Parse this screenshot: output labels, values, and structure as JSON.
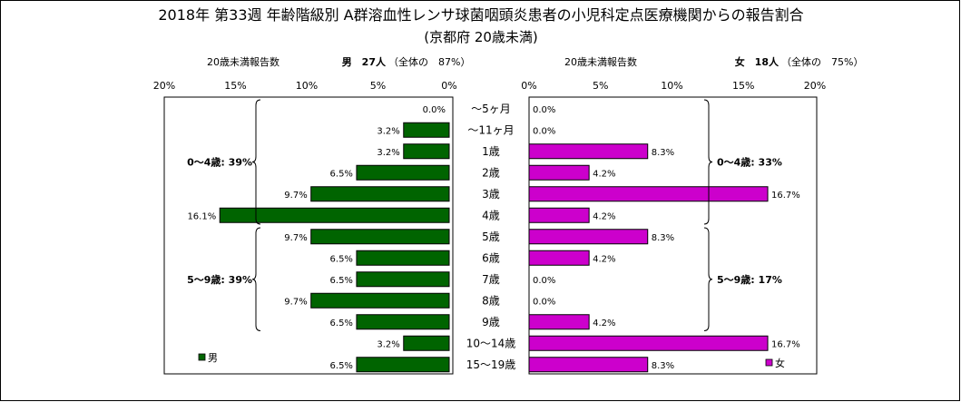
{
  "title": "2018年 第33週 年齢階級別 A群溶血性レンサ球菌咽頭炎患者の小児科定点医療機関からの報告割合",
  "subtitle": "(京都府 20歳未満)",
  "chart_data": {
    "type": "bar",
    "categories": [
      "～5ヶ月",
      "～11ヶ月",
      "1歳",
      "2歳",
      "3歳",
      "4歳",
      "5歳",
      "6歳",
      "7歳",
      "8歳",
      "9歳",
      "10～14歳",
      "15～19歳"
    ],
    "xlim": [
      0,
      20
    ],
    "ticks": [
      "0%",
      "5%",
      "10%",
      "15%",
      "20%"
    ],
    "male": {
      "header_label": "20歳未満報告数",
      "header_title": "男　27人",
      "header_share": "（全体の　87%）",
      "legend": "男",
      "color": "#006400",
      "values": [
        0.0,
        3.2,
        3.2,
        6.5,
        9.7,
        16.1,
        9.7,
        6.5,
        6.5,
        9.7,
        6.5,
        3.2,
        6.5
      ],
      "value_labels": [
        "0.0%",
        "3.2%",
        "3.2%",
        "6.5%",
        "9.7%",
        "16.1%",
        "9.7%",
        "6.5%",
        "6.5%",
        "9.7%",
        "6.5%",
        "3.2%",
        "6.5%"
      ],
      "groups": [
        {
          "label": "0～4歳: 39%",
          "from": 0,
          "to": 5
        },
        {
          "label": "5～9歳: 39%",
          "from": 6,
          "to": 10
        }
      ]
    },
    "female": {
      "header_label": "20歳未満報告数",
      "header_title": "女　18人",
      "header_share": "（全体の　75%）",
      "legend": "女",
      "color": "#CC00CC",
      "values": [
        0.0,
        0.0,
        8.3,
        4.2,
        16.7,
        4.2,
        8.3,
        4.2,
        0.0,
        0.0,
        4.2,
        16.7,
        8.3
      ],
      "value_labels": [
        "0.0%",
        "0.0%",
        "8.3%",
        "4.2%",
        "16.7%",
        "4.2%",
        "8.3%",
        "4.2%",
        "0.0%",
        "0.0%",
        "4.2%",
        "16.7%",
        "8.3%"
      ],
      "groups": [
        {
          "label": "0～4歳: 33%",
          "from": 0,
          "to": 5
        },
        {
          "label": "5～9歳: 17%",
          "from": 6,
          "to": 10
        }
      ]
    }
  }
}
